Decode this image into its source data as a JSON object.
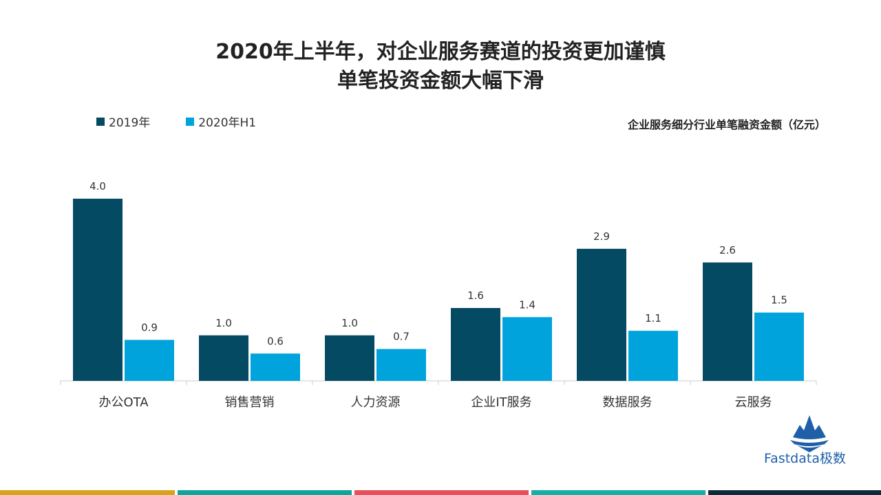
{
  "title_line1": "2020年上半年，对企业服务赛道的投资更加谨慎",
  "title_line2": "单笔投资金额大幅下滑",
  "legend": [
    {
      "label": "2019年",
      "color": "#034a62"
    },
    {
      "label": "2020年H1",
      "color": "#00a3dc"
    }
  ],
  "subtitle": "企业服务细分行业单笔融资金额（亿元）",
  "chart_data": {
    "type": "bar",
    "title": "企业服务细分行业单笔融资金额（亿元）",
    "categories": [
      "办公OTA",
      "销售营销",
      "人力资源",
      "企业IT服务",
      "数据服务",
      "云服务"
    ],
    "series": [
      {
        "name": "2019年",
        "values": [
          4.0,
          1.0,
          1.0,
          1.6,
          2.9,
          2.6
        ],
        "labels": [
          "4.0",
          "1.0",
          "1.0",
          "1.6",
          "2.9",
          "2.6"
        ],
        "color": "#034a62"
      },
      {
        "name": "2020年H1",
        "values": [
          0.9,
          0.6,
          0.7,
          1.4,
          1.1,
          1.5
        ],
        "labels": [
          "0.9",
          "0.6",
          "0.7",
          "1.4",
          "1.1",
          "1.5"
        ],
        "color": "#00a3dc"
      }
    ],
    "ylim": [
      0,
      4.0
    ],
    "xlabel": "",
    "ylabel": ""
  },
  "brand": {
    "name": "Fastdata极数"
  },
  "footer_colors": [
    "#d9a21b",
    "#0ea59a",
    "#e8505b",
    "#13b0a5",
    "#0d2b3a"
  ]
}
